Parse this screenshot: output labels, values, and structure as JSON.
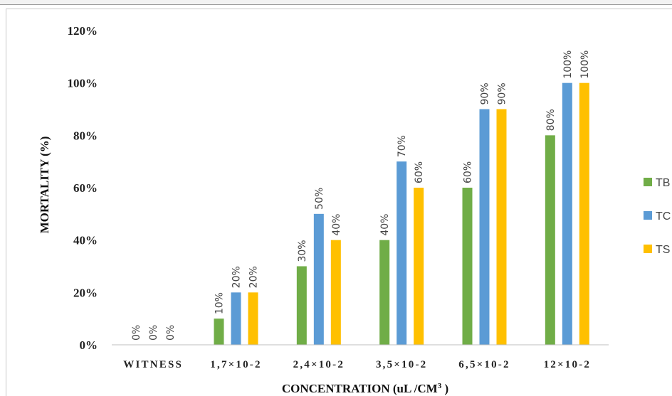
{
  "chart_data": {
    "type": "bar",
    "ylabel": "MORTALITY (%)",
    "xlabel": "CONCENTRATION (uL /CM",
    "xlabel_sup": "3",
    "xlabel_tail": " )",
    "ylim": [
      0,
      120
    ],
    "yticks": [
      "0%",
      "20%",
      "40%",
      "60%",
      "80%",
      "100%",
      "120%"
    ],
    "categories": [
      "WITNESS",
      "1,7×10-2",
      "2,4×10-2",
      "3,5×10-2",
      "6,5×10-2",
      "12×10-2"
    ],
    "series": [
      {
        "name": "TB",
        "color": "#70ad47",
        "values": [
          0,
          10,
          30,
          40,
          60,
          80
        ],
        "labels": [
          "0%",
          "10%",
          "30%",
          "40%",
          "60%",
          "80%"
        ]
      },
      {
        "name": "TC",
        "color": "#5b9bd5",
        "values": [
          0,
          20,
          50,
          70,
          90,
          100
        ],
        "labels": [
          "0%",
          "20%",
          "50%",
          "70%",
          "90%",
          "100%"
        ]
      },
      {
        "name": "TS",
        "color": "#ffc000",
        "values": [
          0,
          20,
          40,
          60,
          90,
          100
        ],
        "labels": [
          "0%",
          "20%",
          "40%",
          "60%",
          "90%",
          "100%"
        ]
      }
    ],
    "legend_position": "right",
    "grid": false
  }
}
